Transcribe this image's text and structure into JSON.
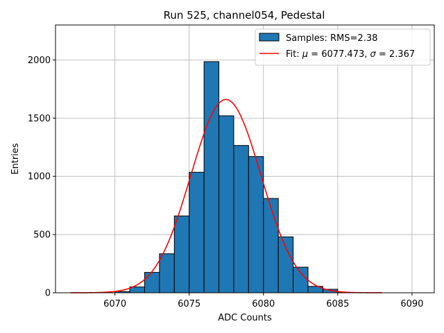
{
  "chart_data": {
    "type": "bar",
    "title": "Run 525, channel054, Pedestal",
    "xlabel": "ADC Counts",
    "ylabel": "Entries",
    "xlim": [
      6066.0,
      6091.5
    ],
    "ylim": [
      0,
      2300
    ],
    "xticks": [
      6070,
      6075,
      6080,
      6085,
      6090
    ],
    "yticks": [
      0,
      500,
      1000,
      1500,
      2000
    ],
    "grid": true,
    "legend_position": "top-right",
    "bin_width": 1,
    "bins": [
      {
        "left": 6070,
        "value": 10
      },
      {
        "left": 6071,
        "value": 50
      },
      {
        "left": 6072,
        "value": 175
      },
      {
        "left": 6073,
        "value": 335
      },
      {
        "left": 6074,
        "value": 660
      },
      {
        "left": 6075,
        "value": 1035
      },
      {
        "left": 6076,
        "value": 1985
      },
      {
        "left": 6077,
        "value": 1520
      },
      {
        "left": 6078,
        "value": 1265
      },
      {
        "left": 6079,
        "value": 1170
      },
      {
        "left": 6080,
        "value": 810
      },
      {
        "left": 6081,
        "value": 480
      },
      {
        "left": 6082,
        "value": 220
      },
      {
        "left": 6083,
        "value": 55
      },
      {
        "left": 6084,
        "value": 30
      },
      {
        "left": 6085,
        "value": 3
      }
    ],
    "fit": {
      "mu": 6077.473,
      "sigma": 2.367,
      "amplitude": 1660,
      "x_range": [
        6067,
        6088
      ]
    },
    "series": [
      {
        "name": "Samples: RMS=2.38",
        "kind": "histogram",
        "color": "#1f77b4"
      },
      {
        "name": "Fit",
        "kind": "line",
        "color": "#ff0000"
      }
    ],
    "legend": {
      "samples_label": "Samples: RMS=2.38",
      "fit_prefix": "Fit: ",
      "mu_symbol": "μ",
      "mu_text": " = 6077.473, ",
      "sigma_symbol": "σ",
      "sigma_text": " = 2.367"
    }
  },
  "colors": {
    "bar": "#1f77b4",
    "bar_edge": "#000000",
    "fit": "#ff0000",
    "grid": "#b0b0b0"
  }
}
